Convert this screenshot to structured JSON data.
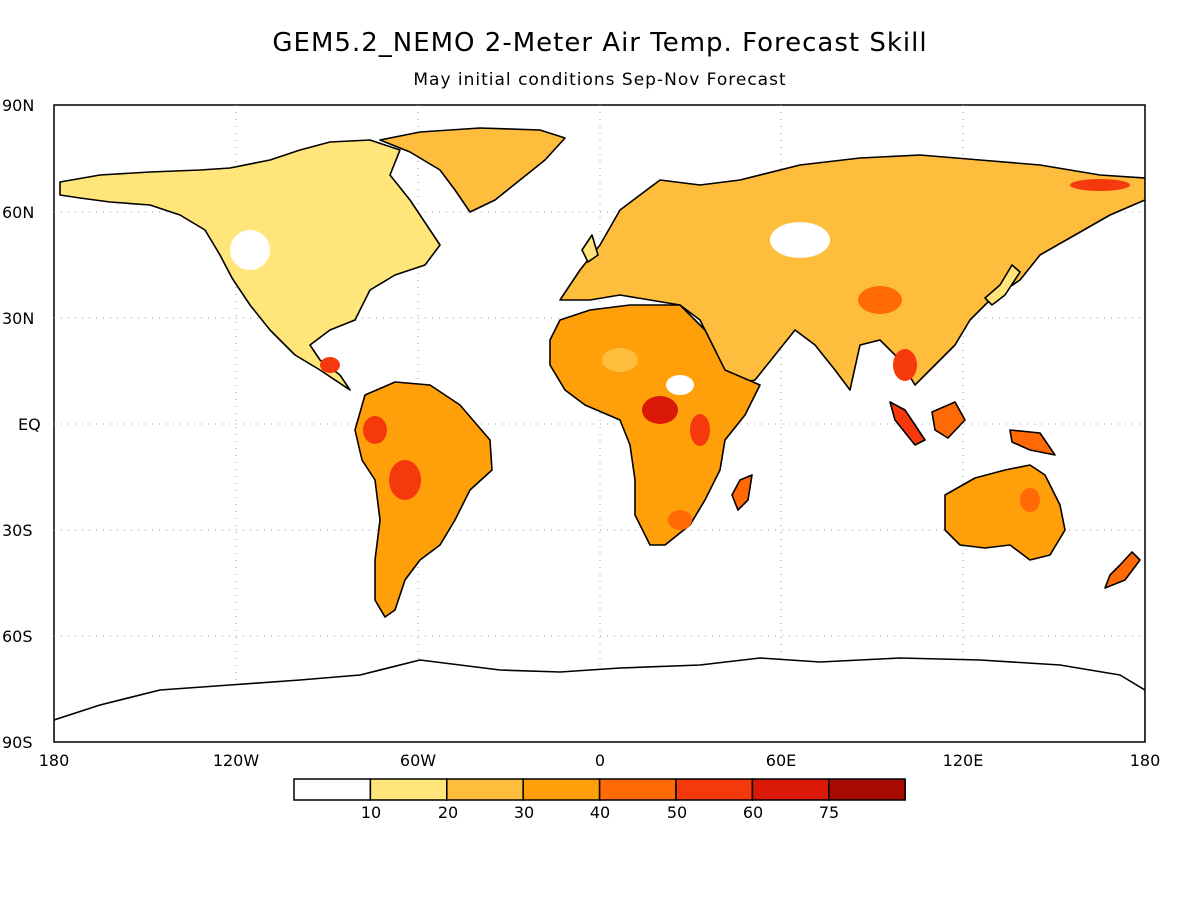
{
  "title": "GEM5.2_NEMO 2-Meter Air Temp. Forecast Skill",
  "subtitle": "May initial conditions  Sep-Nov Forecast",
  "map": {
    "latitude_labels": [
      "90N",
      "60N",
      "30N",
      "EQ",
      "30S",
      "60S",
      "90S"
    ],
    "longitude_labels": [
      "180",
      "120W",
      "60W",
      "0",
      "60E",
      "120E",
      "180"
    ],
    "gridlines": "dotted",
    "coastline_color": "#000000"
  },
  "colorbar": {
    "ticks": [
      "10",
      "20",
      "30",
      "40",
      "50",
      "60",
      "75"
    ],
    "colors": [
      "#ffffff",
      "#ffe57a",
      "#ffbd3d",
      "#ff9f0a",
      "#ff6a06",
      "#f5390d",
      "#d91807",
      "#a60a00"
    ]
  },
  "legend_placement": "bottom-center"
}
